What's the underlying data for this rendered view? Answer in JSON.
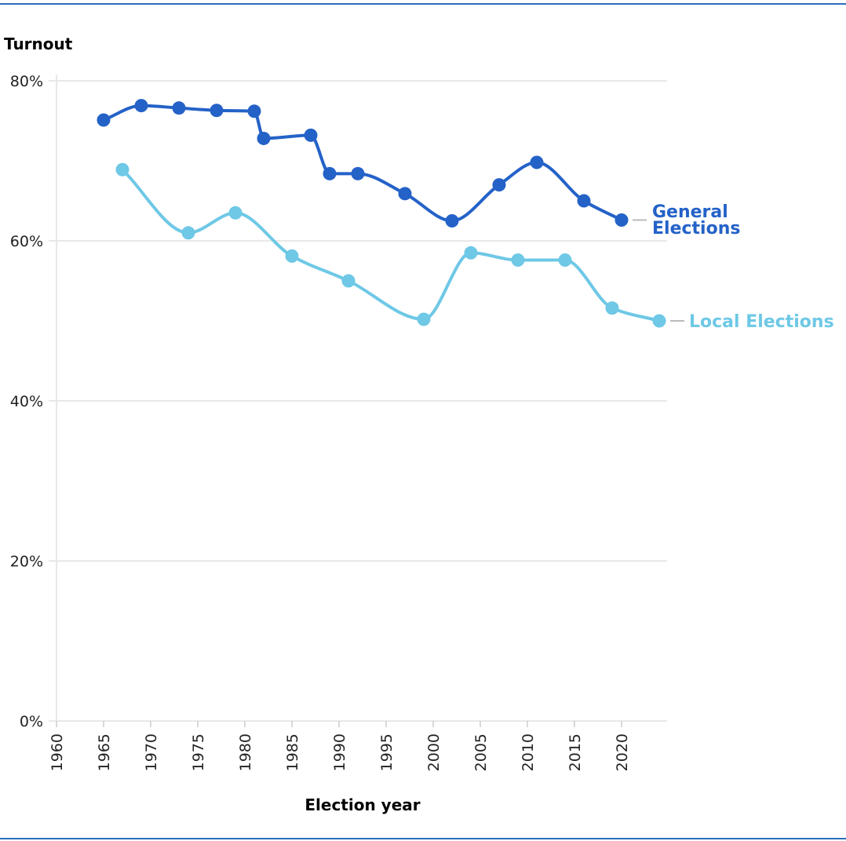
{
  "chart_data": {
    "type": "line",
    "ylabel": "Turnout",
    "xlabel": "Election year",
    "xlim": [
      1960,
      2025
    ],
    "ylim": [
      0,
      80
    ],
    "x_ticks": [
      "1960",
      "1965",
      "1970",
      "1975",
      "1980",
      "1985",
      "1990",
      "1995",
      "2000",
      "2005",
      "2010",
      "2015",
      "2020"
    ],
    "y_ticks": [
      "0%",
      "20%",
      "40%",
      "60%",
      "80%"
    ],
    "grid": "horizontal",
    "legend": "inline-right",
    "series": [
      {
        "name": "General Elections",
        "color": "#2462c8",
        "x": [
          1965,
          1969,
          1973,
          1977,
          1981,
          1982,
          1987,
          1989,
          1992,
          1997,
          2002,
          2007,
          2011,
          2016,
          2020
        ],
        "y": [
          75.1,
          76.9,
          76.6,
          76.3,
          76.2,
          72.8,
          73.2,
          68.4,
          68.4,
          65.9,
          62.5,
          67.0,
          69.8,
          65.0,
          62.6
        ]
      },
      {
        "name": "Local Elections",
        "color": "#6ec8e6",
        "x": [
          1967,
          1974,
          1979,
          1985,
          1991,
          1999,
          2004,
          2009,
          2014,
          2019,
          2024
        ],
        "y": [
          68.9,
          61.0,
          63.5,
          58.1,
          55.0,
          50.2,
          58.5,
          57.6,
          57.6,
          51.6,
          50.0
        ]
      }
    ]
  }
}
